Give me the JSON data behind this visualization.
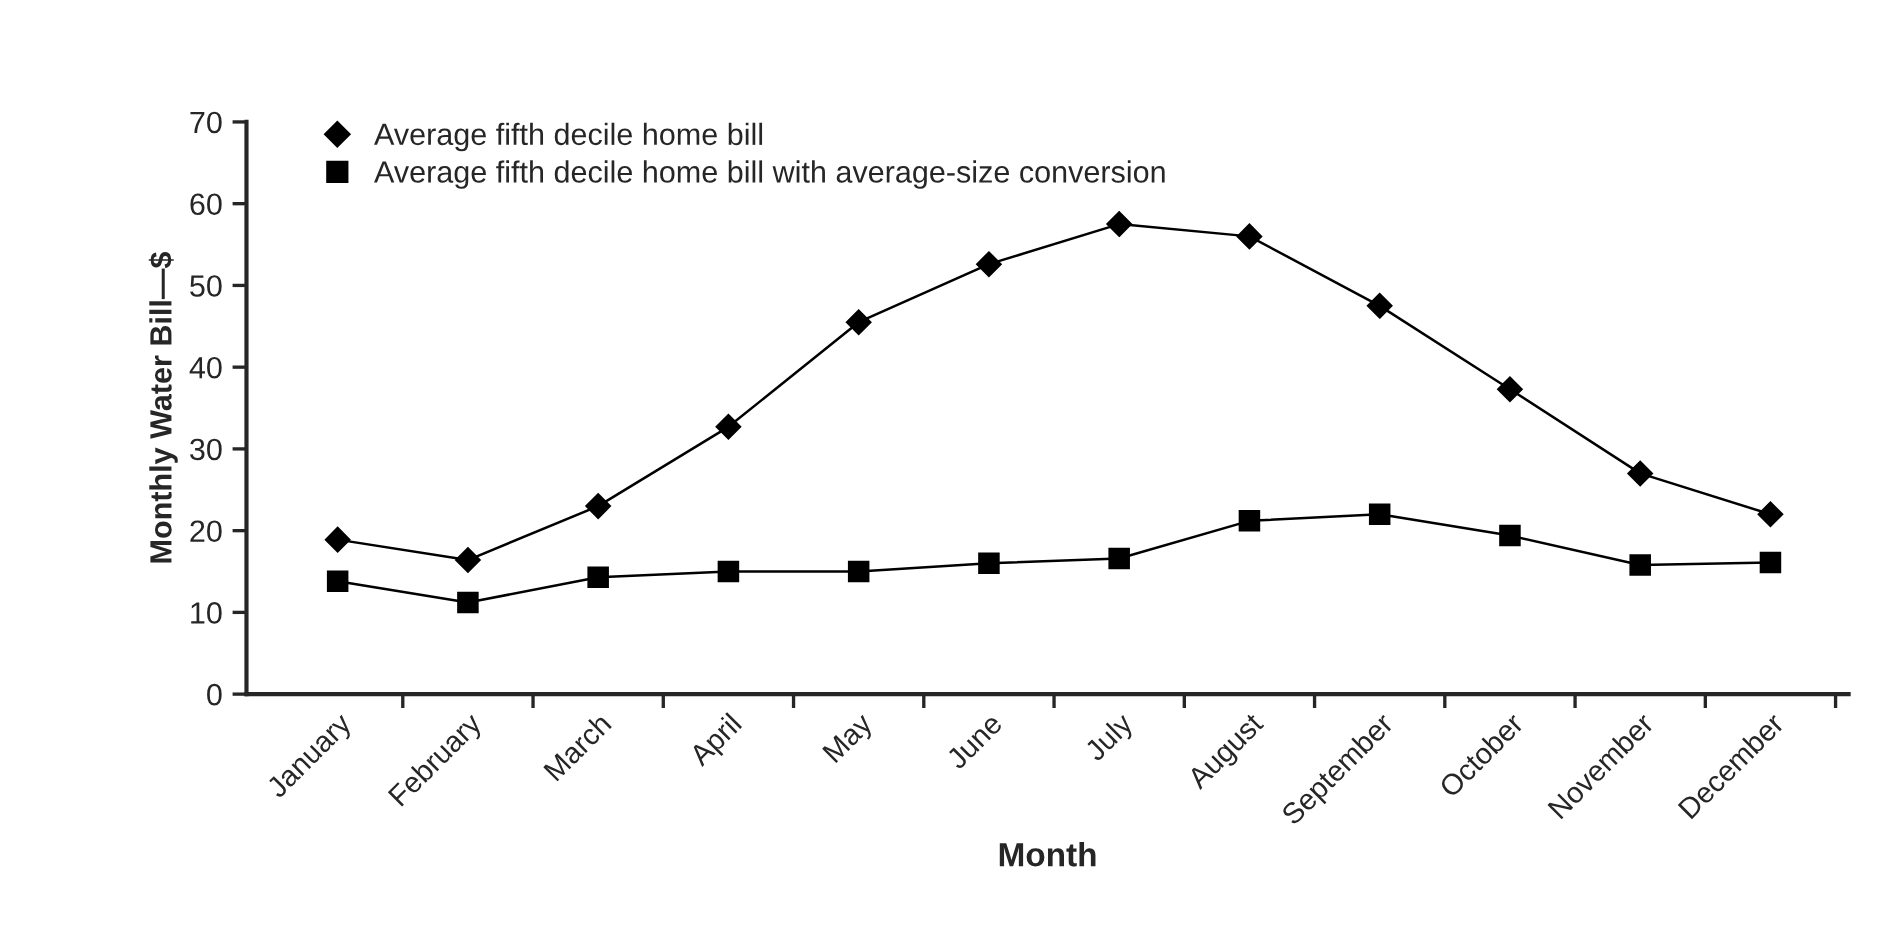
{
  "chart_data": {
    "type": "line",
    "xlabel": "Month",
    "ylabel": "Monthly Water Bill—$",
    "categories": [
      "January",
      "February",
      "March",
      "April",
      "May",
      "June",
      "July",
      "August",
      "September",
      "October",
      "November",
      "December"
    ],
    "series": [
      {
        "name": "Average fifth decile home bill",
        "color": "#000000",
        "marker": "diamond",
        "values": [
          18.9,
          16.4,
          23,
          32.7,
          45.5,
          52.6,
          57.5,
          56,
          47.5,
          37.3,
          27,
          22
        ]
      },
      {
        "name": "Average fifth decile home bill with average-size conversion",
        "color": "#000000",
        "marker": "square",
        "values": [
          13.8,
          11.2,
          14.3,
          15,
          15,
          16,
          16.6,
          21.2,
          22,
          19.4,
          15.8,
          16.1
        ]
      }
    ],
    "ylim": [
      0,
      70
    ],
    "yticks": [
      0,
      10,
      20,
      30,
      40,
      50,
      60,
      70
    ],
    "grid": false,
    "legend": "top left",
    "line_style": "solid"
  }
}
